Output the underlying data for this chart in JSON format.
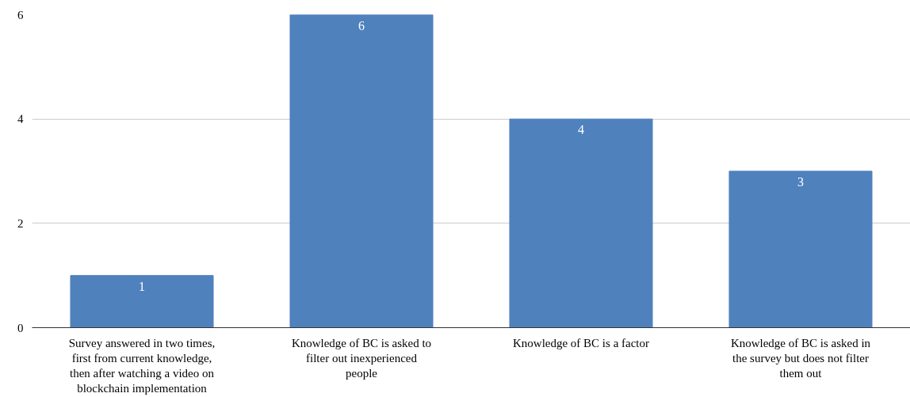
{
  "chart_data": {
    "type": "bar",
    "categories": [
      "Survey answered in two times, first from current knowledge, then after watching a video on blockchain implementation",
      "Knowledge of BC is asked to filter out inexperienced people",
      "Knowledge of BC is a factor",
      "Knowledge of BC is asked in the survey but does not filter them out"
    ],
    "values": [
      1,
      6,
      4,
      3
    ],
    "color": "#4f81bd",
    "ylim": [
      0,
      6
    ],
    "yticks": [
      0,
      2,
      4,
      6
    ],
    "grid": "y",
    "data_labels": true
  }
}
